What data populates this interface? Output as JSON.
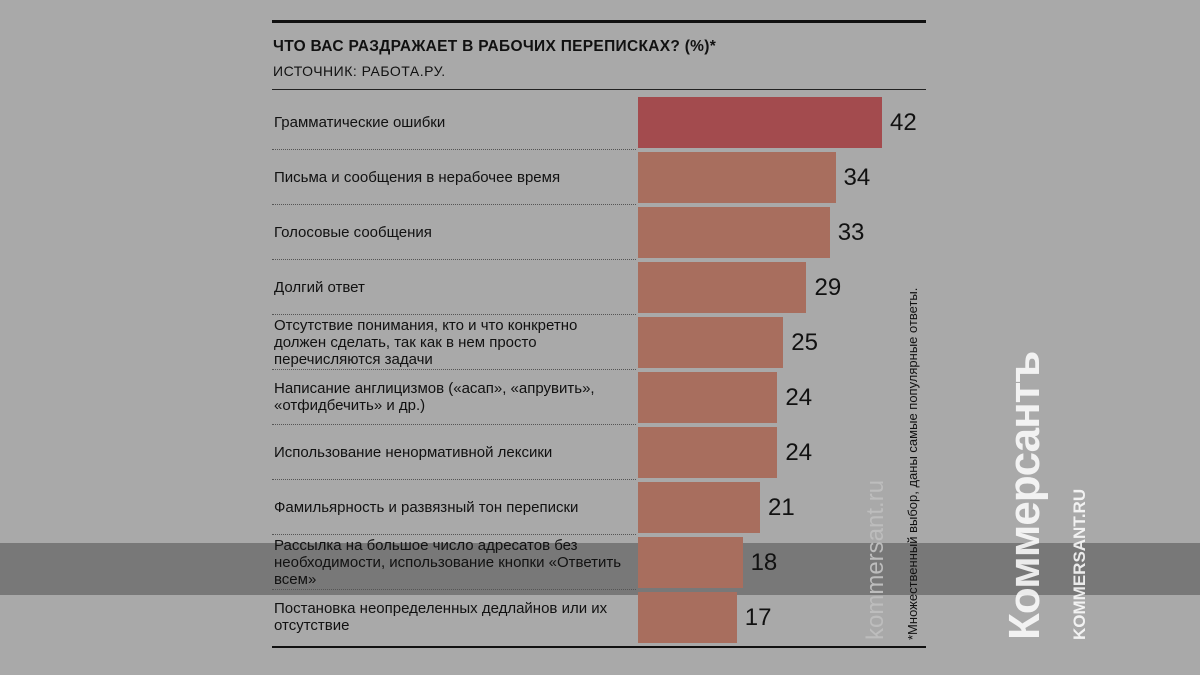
{
  "chart_data": {
    "type": "bar",
    "orientation": "horizontal",
    "title": "ЧТО ВАС РАЗДРАЖАЕТ В РАБОЧИХ ПЕРЕПИСКАХ? (%)*",
    "source": "ИСТОЧНИК: РАБОТА.РУ.",
    "note": "*Множественный выбор, даны самые популярные ответы.",
    "categories": [
      "Грамматические ошибки",
      "Письма и сообщения в нерабочее время",
      "Голосовые сообщения",
      "Долгий ответ",
      "Отсутствие понимания, кто и что конкретно должен сделать, так как в нем просто перечисляются задачи",
      "Написание англицизмов («асап», «апрувить», «отфидбечить» и др.)",
      "Использование ненормативной лексики",
      "Фамильярность и развязный тон переписки",
      "Рассылка на большое число адресатов без необходимости, использование кнопки «Ответить всем»",
      "Постановка неопределенных дедлайнов или их отсутствие"
    ],
    "values": [
      42,
      34,
      33,
      29,
      25,
      24,
      24,
      21,
      18,
      17
    ],
    "xlim": [
      0,
      45
    ],
    "colors": {
      "highlight": "#a34b4e",
      "bar": "#a86e5e"
    }
  },
  "watermark": {
    "brand": "Коммерсантъ",
    "site": "KOMMERSANT.RU",
    "vertical": "kommersant.ru"
  }
}
